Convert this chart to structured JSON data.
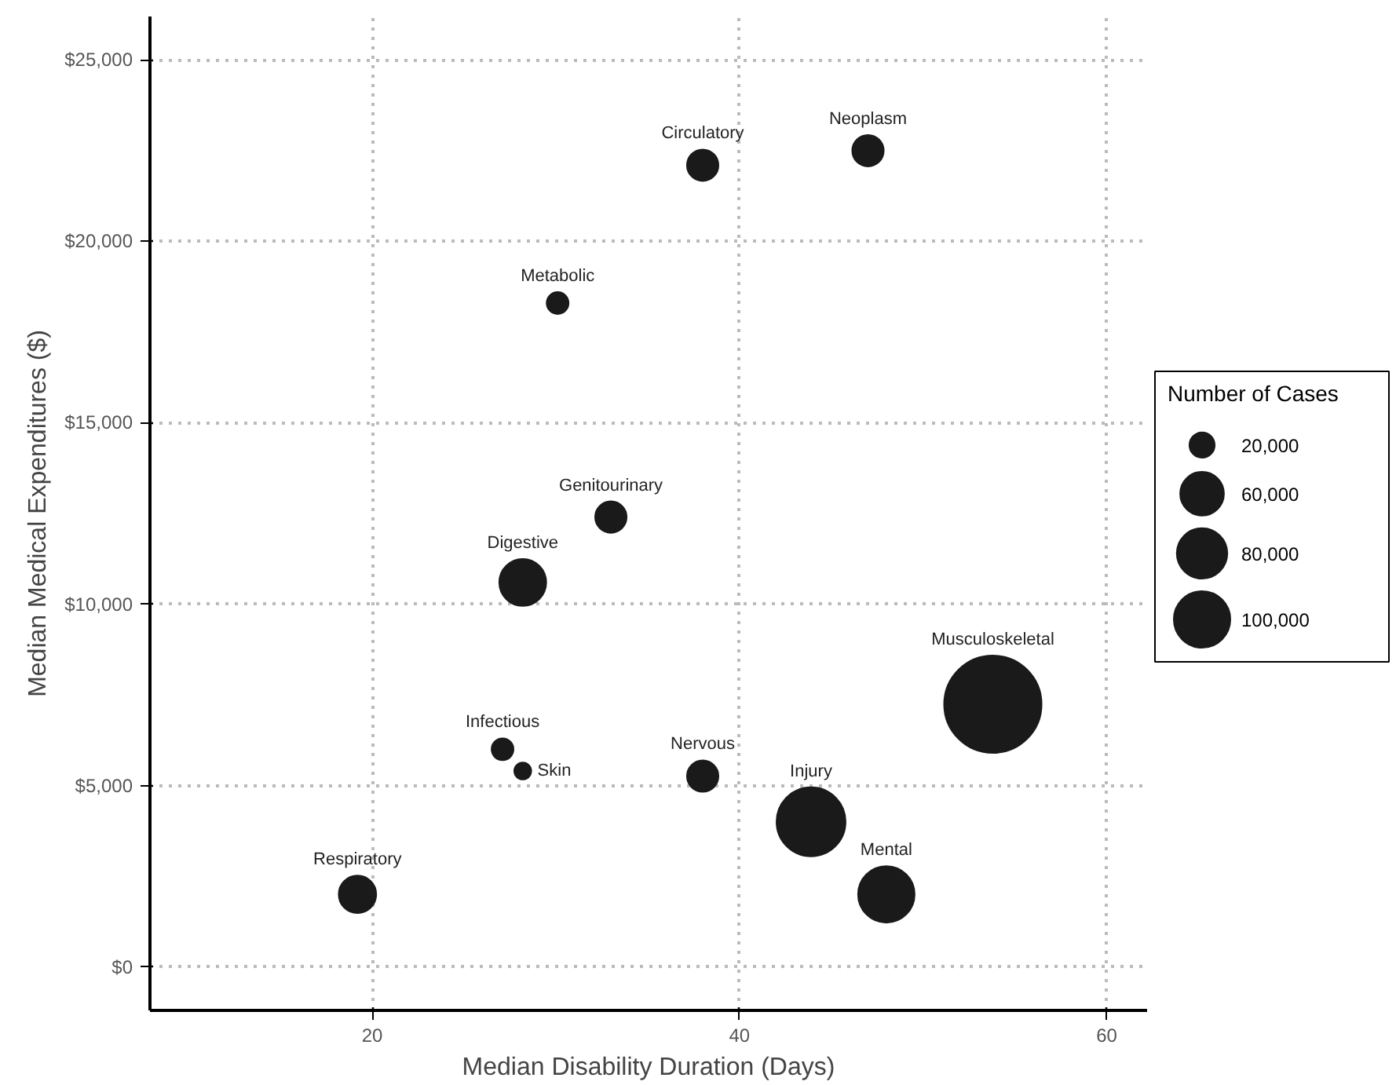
{
  "chart_data": {
    "type": "bubble",
    "xlabel": "Median Disability Duration (Days)",
    "ylabel": "Median Medical Expenditures ($)",
    "legend_title": "Number of Cases",
    "x": [
      38.0,
      47.0,
      30.1,
      33.0,
      28.2,
      53.8,
      27.1,
      28.2,
      38.0,
      43.9,
      19.2,
      48.0
    ],
    "values": [
      22100,
      22500,
      18300,
      12400,
      10600,
      7240,
      6000,
      5400,
      5260,
      4000,
      2000,
      2000
    ],
    "sizes": [
      31000,
      31000,
      15000,
      31000,
      69000,
      297000,
      15000,
      9000,
      31000,
      149000,
      44000,
      100000
    ],
    "size_legend": [
      {
        "value": 20000,
        "label": "20,000"
      },
      {
        "value": 60000,
        "label": "60,000"
      },
      {
        "value": 80000,
        "label": "80,000"
      },
      {
        "value": 100000,
        "label": "100,000"
      }
    ],
    "color": "#1a1a1a",
    "annotations": [
      "Circulatory",
      "Neoplasm",
      "Metabolic",
      "Genitourinary",
      "Digestive",
      "Musculoskeletal",
      "Infectious",
      "Skin",
      "Nervous",
      "Injury",
      "Respiratory",
      "Mental"
    ],
    "xlim": [
      7.9,
      62.2
    ],
    "ylim": [
      -1200,
      26200
    ],
    "xticks": [
      20,
      40,
      60
    ],
    "yticks": [
      {
        "value": 0,
        "label": "$0"
      },
      {
        "value": 5000,
        "label": "$5,000"
      },
      {
        "value": 10000,
        "label": "$10,000"
      },
      {
        "value": 15000,
        "label": "$15,000"
      },
      {
        "value": 20000,
        "label": "$20,000"
      },
      {
        "value": 25000,
        "label": "$25,000"
      }
    ],
    "grid": true
  }
}
